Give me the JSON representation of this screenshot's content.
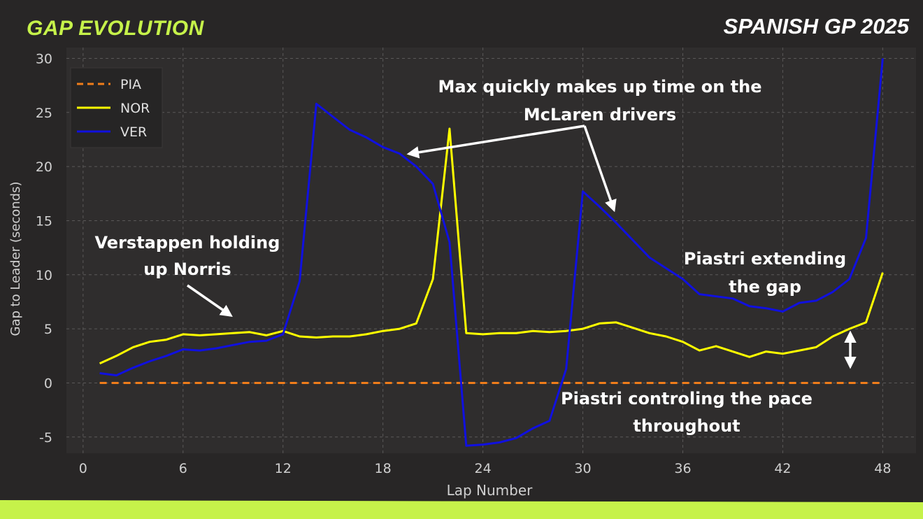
{
  "header": {
    "title": "GAP EVOLUTION",
    "race": "SPANISH GP 2025"
  },
  "colors": {
    "background": "#282626",
    "plot_background": "#2f2d2d",
    "accent": "#c6f24a",
    "PIA": "#f07d1a",
    "NOR": "#ffff00",
    "VER": "#1010e0"
  },
  "chart_data": {
    "type": "line",
    "xlabel": "Lap Number",
    "ylabel": "Gap to Leader (seconds)",
    "xlim": [
      -1,
      50
    ],
    "ylim": [
      -6.5,
      31
    ],
    "xticks": [
      0,
      6,
      12,
      18,
      24,
      30,
      36,
      42,
      48
    ],
    "yticks": [
      -5,
      0,
      5,
      10,
      15,
      20,
      25,
      30
    ],
    "grid": true,
    "legend_position": "top-left",
    "x": [
      1,
      2,
      3,
      4,
      5,
      6,
      7,
      8,
      9,
      10,
      11,
      12,
      13,
      14,
      15,
      16,
      17,
      18,
      19,
      20,
      21,
      22,
      23,
      24,
      25,
      26,
      27,
      28,
      29,
      30,
      31,
      32,
      33,
      34,
      35,
      36,
      37,
      38,
      39,
      40,
      41,
      42,
      43,
      44,
      45,
      46,
      47,
      48
    ],
    "series": [
      {
        "name": "PIA",
        "style": "dashed",
        "values": [
          0,
          0,
          0,
          0,
          0,
          0,
          0,
          0,
          0,
          0,
          0,
          0,
          0,
          0,
          0,
          0,
          0,
          0,
          0,
          0,
          0,
          0,
          0,
          0,
          0,
          0,
          0,
          0,
          0,
          0,
          0,
          0,
          0,
          0,
          0,
          0,
          0,
          0,
          0,
          0,
          0,
          0,
          0,
          0,
          0,
          0,
          0,
          0
        ]
      },
      {
        "name": "NOR",
        "style": "solid",
        "values": [
          1.8,
          2.5,
          3.3,
          3.8,
          4.0,
          4.5,
          4.4,
          4.5,
          4.6,
          4.7,
          4.4,
          4.8,
          4.3,
          4.2,
          4.3,
          4.3,
          4.5,
          4.8,
          5.0,
          5.5,
          9.6,
          23.5,
          4.6,
          4.5,
          4.6,
          4.6,
          4.8,
          4.7,
          4.8,
          5.0,
          5.5,
          5.6,
          5.1,
          4.6,
          4.3,
          3.8,
          3.0,
          3.4,
          2.9,
          2.4,
          2.9,
          2.7,
          3.0,
          3.3,
          4.3,
          5.0,
          5.6,
          10.2
        ]
      },
      {
        "name": "VER",
        "style": "solid",
        "values": [
          0.9,
          0.7,
          1.4,
          2.0,
          2.5,
          3.1,
          3.0,
          3.2,
          3.5,
          3.8,
          3.9,
          4.5,
          9.4,
          25.8,
          24.6,
          23.4,
          22.7,
          21.8,
          21.2,
          20.0,
          18.4,
          13.0,
          -5.8,
          -5.7,
          -5.5,
          -5.1,
          -4.2,
          -3.5,
          1.3,
          17.7,
          16.3,
          14.8,
          13.2,
          11.6,
          10.6,
          9.6,
          8.2,
          8.0,
          7.8,
          7.1,
          6.9,
          6.6,
          7.4,
          7.6,
          8.4,
          9.6,
          13.4,
          30.0
        ]
      }
    ],
    "annotations": {
      "verstappen": [
        "Verstappen holding",
        "up Norris"
      ],
      "max": [
        "Max quickly makes up time on the",
        "McLaren drivers"
      ],
      "extending": [
        "Piastri extending",
        "the gap"
      ],
      "controlling": [
        "Piastri controling the pace",
        "throughout"
      ]
    }
  }
}
